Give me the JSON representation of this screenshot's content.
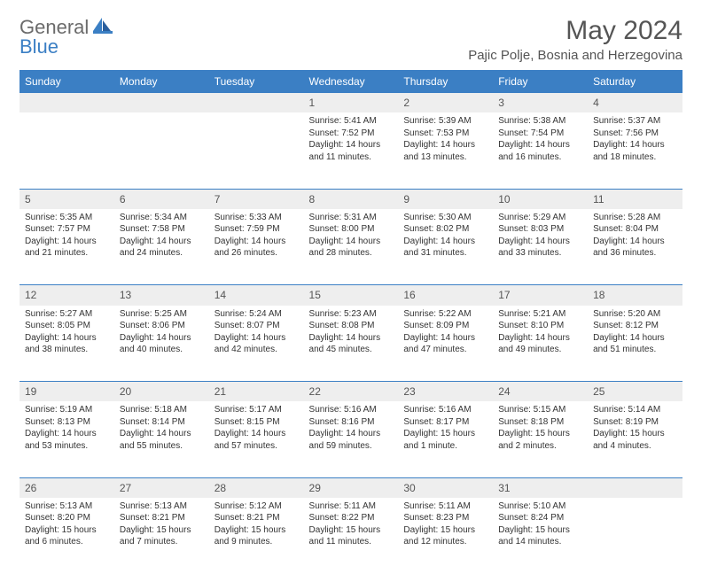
{
  "brand": {
    "part1": "General",
    "part2": "Blue"
  },
  "title": "May 2024",
  "location": "Pajic Polje, Bosnia and Herzegovina",
  "colors": {
    "header_bg": "#3b7fc4",
    "header_text": "#ffffff",
    "daynum_bg": "#eeeeee",
    "page_bg": "#ffffff",
    "text": "#333333",
    "brand_gray": "#6b6b6b",
    "brand_blue": "#3b7fc4",
    "row_border": "#3b7fc4"
  },
  "typography": {
    "title_fontsize": 30,
    "location_fontsize": 15,
    "dayheader_fontsize": 12,
    "daynum_fontsize": 12,
    "cell_fontsize": 10
  },
  "day_headers": [
    "Sunday",
    "Monday",
    "Tuesday",
    "Wednesday",
    "Thursday",
    "Friday",
    "Saturday"
  ],
  "weeks": [
    {
      "nums": [
        "",
        "",
        "",
        "1",
        "2",
        "3",
        "4"
      ],
      "cells": [
        null,
        null,
        null,
        {
          "sunrise": "Sunrise: 5:41 AM",
          "sunset": "Sunset: 7:52 PM",
          "day1": "Daylight: 14 hours",
          "day2": "and 11 minutes."
        },
        {
          "sunrise": "Sunrise: 5:39 AM",
          "sunset": "Sunset: 7:53 PM",
          "day1": "Daylight: 14 hours",
          "day2": "and 13 minutes."
        },
        {
          "sunrise": "Sunrise: 5:38 AM",
          "sunset": "Sunset: 7:54 PM",
          "day1": "Daylight: 14 hours",
          "day2": "and 16 minutes."
        },
        {
          "sunrise": "Sunrise: 5:37 AM",
          "sunset": "Sunset: 7:56 PM",
          "day1": "Daylight: 14 hours",
          "day2": "and 18 minutes."
        }
      ]
    },
    {
      "nums": [
        "5",
        "6",
        "7",
        "8",
        "9",
        "10",
        "11"
      ],
      "cells": [
        {
          "sunrise": "Sunrise: 5:35 AM",
          "sunset": "Sunset: 7:57 PM",
          "day1": "Daylight: 14 hours",
          "day2": "and 21 minutes."
        },
        {
          "sunrise": "Sunrise: 5:34 AM",
          "sunset": "Sunset: 7:58 PM",
          "day1": "Daylight: 14 hours",
          "day2": "and 24 minutes."
        },
        {
          "sunrise": "Sunrise: 5:33 AM",
          "sunset": "Sunset: 7:59 PM",
          "day1": "Daylight: 14 hours",
          "day2": "and 26 minutes."
        },
        {
          "sunrise": "Sunrise: 5:31 AM",
          "sunset": "Sunset: 8:00 PM",
          "day1": "Daylight: 14 hours",
          "day2": "and 28 minutes."
        },
        {
          "sunrise": "Sunrise: 5:30 AM",
          "sunset": "Sunset: 8:02 PM",
          "day1": "Daylight: 14 hours",
          "day2": "and 31 minutes."
        },
        {
          "sunrise": "Sunrise: 5:29 AM",
          "sunset": "Sunset: 8:03 PM",
          "day1": "Daylight: 14 hours",
          "day2": "and 33 minutes."
        },
        {
          "sunrise": "Sunrise: 5:28 AM",
          "sunset": "Sunset: 8:04 PM",
          "day1": "Daylight: 14 hours",
          "day2": "and 36 minutes."
        }
      ]
    },
    {
      "nums": [
        "12",
        "13",
        "14",
        "15",
        "16",
        "17",
        "18"
      ],
      "cells": [
        {
          "sunrise": "Sunrise: 5:27 AM",
          "sunset": "Sunset: 8:05 PM",
          "day1": "Daylight: 14 hours",
          "day2": "and 38 minutes."
        },
        {
          "sunrise": "Sunrise: 5:25 AM",
          "sunset": "Sunset: 8:06 PM",
          "day1": "Daylight: 14 hours",
          "day2": "and 40 minutes."
        },
        {
          "sunrise": "Sunrise: 5:24 AM",
          "sunset": "Sunset: 8:07 PM",
          "day1": "Daylight: 14 hours",
          "day2": "and 42 minutes."
        },
        {
          "sunrise": "Sunrise: 5:23 AM",
          "sunset": "Sunset: 8:08 PM",
          "day1": "Daylight: 14 hours",
          "day2": "and 45 minutes."
        },
        {
          "sunrise": "Sunrise: 5:22 AM",
          "sunset": "Sunset: 8:09 PM",
          "day1": "Daylight: 14 hours",
          "day2": "and 47 minutes."
        },
        {
          "sunrise": "Sunrise: 5:21 AM",
          "sunset": "Sunset: 8:10 PM",
          "day1": "Daylight: 14 hours",
          "day2": "and 49 minutes."
        },
        {
          "sunrise": "Sunrise: 5:20 AM",
          "sunset": "Sunset: 8:12 PM",
          "day1": "Daylight: 14 hours",
          "day2": "and 51 minutes."
        }
      ]
    },
    {
      "nums": [
        "19",
        "20",
        "21",
        "22",
        "23",
        "24",
        "25"
      ],
      "cells": [
        {
          "sunrise": "Sunrise: 5:19 AM",
          "sunset": "Sunset: 8:13 PM",
          "day1": "Daylight: 14 hours",
          "day2": "and 53 minutes."
        },
        {
          "sunrise": "Sunrise: 5:18 AM",
          "sunset": "Sunset: 8:14 PM",
          "day1": "Daylight: 14 hours",
          "day2": "and 55 minutes."
        },
        {
          "sunrise": "Sunrise: 5:17 AM",
          "sunset": "Sunset: 8:15 PM",
          "day1": "Daylight: 14 hours",
          "day2": "and 57 minutes."
        },
        {
          "sunrise": "Sunrise: 5:16 AM",
          "sunset": "Sunset: 8:16 PM",
          "day1": "Daylight: 14 hours",
          "day2": "and 59 minutes."
        },
        {
          "sunrise": "Sunrise: 5:16 AM",
          "sunset": "Sunset: 8:17 PM",
          "day1": "Daylight: 15 hours",
          "day2": "and 1 minute."
        },
        {
          "sunrise": "Sunrise: 5:15 AM",
          "sunset": "Sunset: 8:18 PM",
          "day1": "Daylight: 15 hours",
          "day2": "and 2 minutes."
        },
        {
          "sunrise": "Sunrise: 5:14 AM",
          "sunset": "Sunset: 8:19 PM",
          "day1": "Daylight: 15 hours",
          "day2": "and 4 minutes."
        }
      ]
    },
    {
      "nums": [
        "26",
        "27",
        "28",
        "29",
        "30",
        "31",
        ""
      ],
      "cells": [
        {
          "sunrise": "Sunrise: 5:13 AM",
          "sunset": "Sunset: 8:20 PM",
          "day1": "Daylight: 15 hours",
          "day2": "and 6 minutes."
        },
        {
          "sunrise": "Sunrise: 5:13 AM",
          "sunset": "Sunset: 8:21 PM",
          "day1": "Daylight: 15 hours",
          "day2": "and 7 minutes."
        },
        {
          "sunrise": "Sunrise: 5:12 AM",
          "sunset": "Sunset: 8:21 PM",
          "day1": "Daylight: 15 hours",
          "day2": "and 9 minutes."
        },
        {
          "sunrise": "Sunrise: 5:11 AM",
          "sunset": "Sunset: 8:22 PM",
          "day1": "Daylight: 15 hours",
          "day2": "and 11 minutes."
        },
        {
          "sunrise": "Sunrise: 5:11 AM",
          "sunset": "Sunset: 8:23 PM",
          "day1": "Daylight: 15 hours",
          "day2": "and 12 minutes."
        },
        {
          "sunrise": "Sunrise: 5:10 AM",
          "sunset": "Sunset: 8:24 PM",
          "day1": "Daylight: 15 hours",
          "day2": "and 14 minutes."
        },
        null
      ]
    }
  ]
}
